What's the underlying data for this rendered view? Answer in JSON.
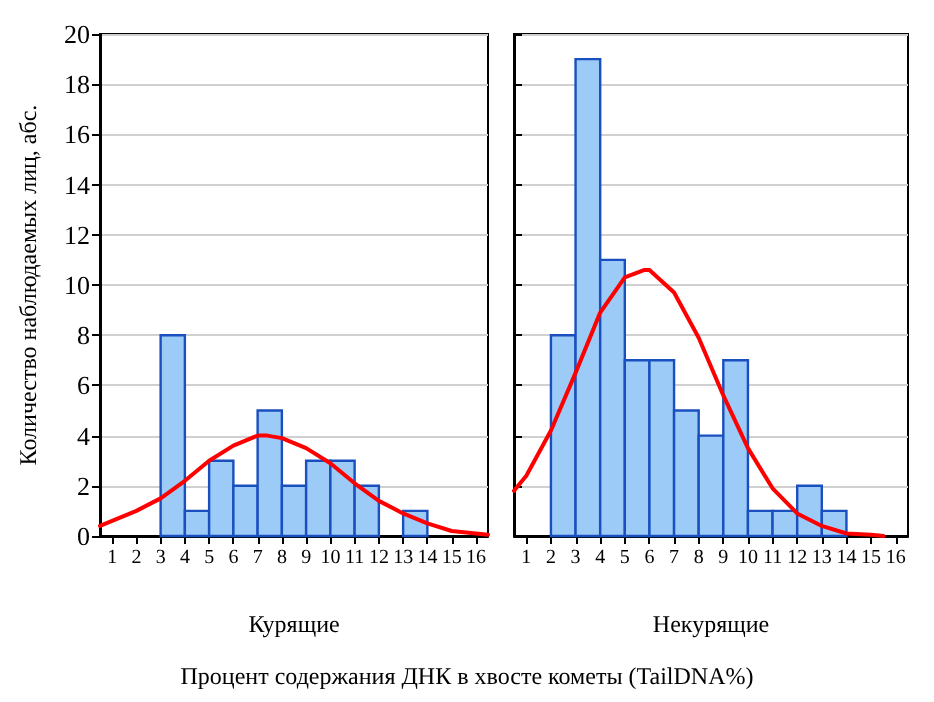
{
  "chart_data": [
    {
      "type": "histogram",
      "ylabel": "Количество наблюдаемых лиц, абс.",
      "xlabel": "Курящие",
      "annotations": [
        "Процент содержания ДНК в хвосте кометы (TailDNA%)"
      ],
      "xlim": [
        0.5,
        16.5
      ],
      "xticks": [
        1,
        2,
        3,
        4,
        5,
        6,
        7,
        8,
        9,
        10,
        11,
        12,
        13,
        14,
        15,
        16
      ],
      "ylim": [
        0,
        20
      ],
      "yticks": [
        0,
        2,
        4,
        6,
        8,
        10,
        12,
        14,
        16,
        18,
        20
      ],
      "grid": "y",
      "legend": false,
      "series": [
        {
          "type": "histogram",
          "color": "#9ccbf7",
          "bins": [
            3,
            4,
            5,
            6,
            7,
            8,
            9,
            10,
            11,
            12,
            13,
            14
          ],
          "values": [
            8,
            1,
            3,
            2,
            5,
            2,
            3,
            3,
            2,
            0,
            1
          ]
        },
        {
          "type": "line",
          "color": "#ff0000",
          "marker": "none",
          "x": [
            0.5,
            2,
            3,
            4,
            5,
            6,
            7,
            7.4,
            8,
            9,
            10,
            11,
            12,
            13,
            14,
            15,
            16,
            16.5
          ],
          "values": [
            0.4,
            1.0,
            1.5,
            2.2,
            3.0,
            3.6,
            4.0,
            4.0,
            3.9,
            3.5,
            2.9,
            2.1,
            1.4,
            0.9,
            0.5,
            0.2,
            0.1,
            0.05
          ]
        }
      ]
    },
    {
      "type": "histogram",
      "xlabel": "Некурящие",
      "xlim": [
        0.5,
        16.5
      ],
      "xticks": [
        1,
        2,
        3,
        4,
        5,
        6,
        7,
        8,
        9,
        10,
        11,
        12,
        13,
        14,
        15,
        16
      ],
      "ylim": [
        0,
        20
      ],
      "yticks": [
        0,
        2,
        4,
        6,
        8,
        10,
        12,
        14,
        16,
        18,
        20
      ],
      "tick_labels": "x",
      "grid": "y",
      "legend": false,
      "series": [
        {
          "type": "histogram",
          "color": "#9ccbf7",
          "bins": [
            2,
            3,
            4,
            5,
            6,
            7,
            8,
            9,
            10,
            11,
            12,
            13,
            14
          ],
          "values": [
            8,
            19,
            11,
            7,
            7,
            5,
            4,
            7,
            1,
            1,
            2,
            1
          ]
        },
        {
          "type": "line",
          "color": "#ff0000",
          "marker": "none",
          "x": [
            0.5,
            1,
            2,
            3,
            4,
            5,
            5.8,
            6,
            7,
            8,
            9,
            10,
            11,
            12,
            13,
            14,
            15,
            15.5
          ],
          "values": [
            1.8,
            2.4,
            4.2,
            6.5,
            8.9,
            10.3,
            10.6,
            10.6,
            9.7,
            7.9,
            5.6,
            3.5,
            1.9,
            0.9,
            0.4,
            0.1,
            0.05,
            0
          ]
        }
      ]
    }
  ]
}
